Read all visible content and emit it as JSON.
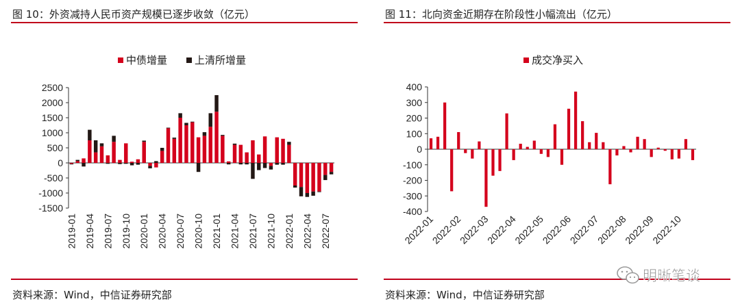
{
  "left": {
    "title": "图 10：外资减持人民币资产规模已逐步收敛（亿元）",
    "source": "资料来源：Wind，中信证券研究部"
  },
  "right": {
    "title": "图 11：北向资金近期存在阶段性小幅流出（亿元）",
    "source": "资料来源：Wind，中信证券研究部"
  },
  "watermark": {
    "text": "明晰笔谈",
    "icon": "wechat-icon"
  },
  "colors": {
    "red": "#d4001c",
    "black": "#231815",
    "rule": "#c0001a"
  },
  "chart_data": [
    {
      "type": "bar",
      "stacked": true,
      "legend": [
        "中债增量",
        "上清所增量"
      ],
      "legend_position": "top-center",
      "ylim": [
        -1500,
        2500
      ],
      "yticks": [
        -1500,
        -1000,
        -500,
        0,
        500,
        1000,
        1500,
        2000,
        2500
      ],
      "xtick_labels": [
        "2019-01",
        "2019-04",
        "2019-07",
        "2019-10",
        "2020-01",
        "2020-04",
        "2020-07",
        "2020-10",
        "2021-01",
        "2021-04",
        "2021-07",
        "2021-10",
        "2022-01",
        "2022-04",
        "2022-07"
      ],
      "categories": [
        "2019-01",
        "2019-02",
        "2019-03",
        "2019-04",
        "2019-05",
        "2019-06",
        "2019-07",
        "2019-08",
        "2019-09",
        "2019-10",
        "2019-11",
        "2019-12",
        "2020-01",
        "2020-02",
        "2020-03",
        "2020-04",
        "2020-05",
        "2020-06",
        "2020-07",
        "2020-08",
        "2020-09",
        "2020-10",
        "2020-11",
        "2020-12",
        "2021-01",
        "2021-02",
        "2021-03",
        "2021-04",
        "2021-05",
        "2021-06",
        "2021-07",
        "2021-08",
        "2021-09",
        "2021-10",
        "2021-11",
        "2021-12",
        "2022-01",
        "2022-02",
        "2022-03",
        "2022-04",
        "2022-05",
        "2022-06",
        "2022-07",
        "2022-08"
      ],
      "series": [
        {
          "name": "中债增量",
          "values": [
            -30,
            60,
            150,
            750,
            350,
            550,
            250,
            700,
            100,
            650,
            40,
            120,
            700,
            -100,
            -150,
            400,
            1150,
            800,
            1500,
            1250,
            1350,
            850,
            900,
            1200,
            1700,
            900,
            50,
            600,
            600,
            350,
            750,
            280,
            880,
            -100,
            850,
            800,
            600,
            -750,
            -800,
            -1000,
            -950,
            -950,
            -400,
            -300
          ]
        },
        {
          "name": "上清所增量",
          "values": [
            -20,
            40,
            -120,
            350,
            400,
            100,
            -30,
            200,
            -40,
            -30,
            -80,
            -60,
            40,
            -80,
            60,
            100,
            20,
            40,
            150,
            80,
            20,
            -300,
            120,
            450,
            550,
            30,
            -50,
            40,
            -50,
            -50,
            -530,
            -240,
            -170,
            -120,
            -60,
            -60,
            100,
            -70,
            -310,
            -130,
            -140,
            -20,
            -170,
            -80
          ]
        }
      ]
    },
    {
      "type": "bar",
      "legend": [
        "成交净买入"
      ],
      "legend_position": "top-center",
      "ylim": [
        -400,
        400
      ],
      "yticks": [
        -400,
        -300,
        -200,
        -100,
        0,
        100,
        200,
        300,
        400
      ],
      "xtick_labels": [
        "2022-01",
        "2022-02",
        "2022-03",
        "2022-04",
        "2022-05",
        "2022-06",
        "2022-07",
        "2022-08",
        "2022-09",
        "2022-10"
      ],
      "xtick_positions": [
        0,
        4,
        8,
        12,
        16,
        20,
        24,
        28,
        32,
        36
      ],
      "series": [
        {
          "name": "成交净买入",
          "values": [
            70,
            80,
            300,
            -270,
            110,
            -25,
            -60,
            50,
            -370,
            -170,
            -140,
            230,
            -70,
            35,
            15,
            55,
            -30,
            -50,
            160,
            -100,
            260,
            370,
            180,
            45,
            105,
            45,
            -225,
            -40,
            20,
            -20,
            80,
            65,
            -50,
            10,
            -10,
            -65,
            -60,
            65,
            -70
          ]
        }
      ]
    }
  ]
}
